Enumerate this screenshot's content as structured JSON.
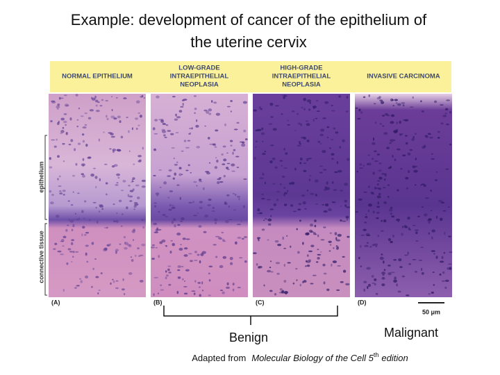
{
  "title": [
    "Example: development of cancer of the epithelium of",
    "the uterine cervix"
  ],
  "panels": [
    {
      "header": [
        "NORMAL EPITHELIUM"
      ],
      "letter": "(A)"
    },
    {
      "header": [
        "LOW-GRADE",
        "INTRAEPITHELIAL",
        "NEOPLASIA"
      ],
      "letter": "(B)"
    },
    {
      "header": [
        "HIGH-GRADE",
        "INTRAEPITHELIAL",
        "NEOPLASIA"
      ],
      "letter": "(C)"
    },
    {
      "header": [
        "INVASIVE CARCINOMA"
      ],
      "letter": "(D)"
    }
  ],
  "side_labels": {
    "epithelium": "epithelium",
    "connective": "connective tissue"
  },
  "scale_label": "50 μm",
  "benign": "Benign",
  "malignant": "Malignant",
  "citation": {
    "prefix": "Adapted from",
    "book": "Molecular Biology of the Cell 5",
    "sup": "th",
    "suffix": "edition"
  }
}
